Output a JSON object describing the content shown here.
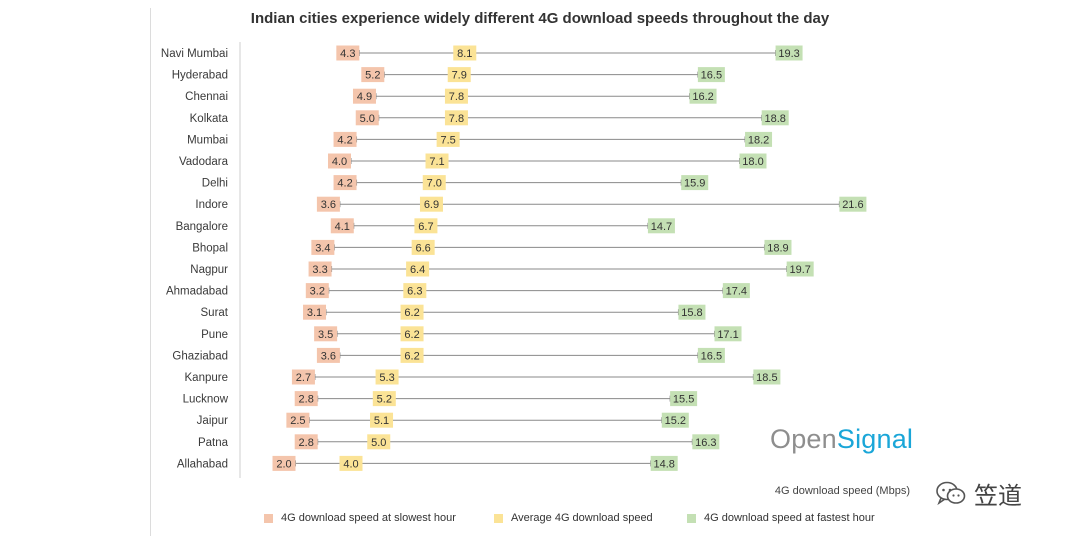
{
  "colors": {
    "slowest": "#f4c5ac",
    "average": "#fbe396",
    "fastest": "#c4e0b4",
    "line": "#8a8a8a"
  },
  "chart_data": {
    "type": "range-dot",
    "title": "Indian cities experience widely different 4G download speeds throughout the day",
    "xlabel": "4G download speed (Mbps)",
    "xlim": [
      0,
      24
    ],
    "categories": [
      "Navi Mumbai",
      "Hyderabad",
      "Chennai",
      "Kolkata",
      "Mumbai",
      "Vadodara",
      "Delhi",
      "Indore",
      "Bangalore",
      "Bhopal",
      "Nagpur",
      "Ahmadabad",
      "Surat",
      "Pune",
      "Ghaziabad",
      "Kanpure",
      "Lucknow",
      "Jaipur",
      "Patna",
      "Allahabad"
    ],
    "series": [
      {
        "name": "4G download speed at slowest hour",
        "values": [
          4.3,
          5.2,
          4.9,
          5.0,
          4.2,
          4.0,
          4.2,
          3.6,
          4.1,
          3.4,
          3.3,
          3.2,
          3.1,
          3.5,
          3.6,
          2.7,
          2.8,
          2.5,
          2.8,
          2.0
        ],
        "labels": [
          "4.3",
          "5.2",
          "4.9",
          "5.0",
          "4.2",
          "4.0",
          "4.2",
          "3.6",
          "4.1",
          "3.4",
          "3.3",
          "3.2",
          "3.1",
          "3.5",
          "3.6",
          "2.7",
          "2.8",
          "2.5",
          "2.8",
          "2.0"
        ]
      },
      {
        "name": "Average 4G download speed",
        "values": [
          8.1,
          7.9,
          7.8,
          7.8,
          7.5,
          7.1,
          7.0,
          6.9,
          6.7,
          6.6,
          6.4,
          6.3,
          6.2,
          6.2,
          6.2,
          5.3,
          5.2,
          5.1,
          5.0,
          4.0
        ],
        "labels": [
          "8.1",
          "7.9",
          "7.8",
          "7.8",
          "7.5",
          "7.1",
          "7.0",
          "6.9",
          "6.7",
          "6.6",
          "6.4",
          "6.3",
          "6.2",
          "6.2",
          "6.2",
          "5.3",
          "5.2",
          "5.1",
          "5.0",
          "4.0"
        ]
      },
      {
        "name": "4G download speed at fastest hour",
        "values": [
          19.3,
          16.5,
          16.2,
          18.8,
          18.2,
          18.0,
          15.9,
          21.6,
          14.7,
          18.9,
          19.7,
          17.4,
          15.8,
          17.1,
          16.5,
          18.5,
          15.5,
          15.2,
          16.3,
          14.8
        ],
        "labels": [
          "19.3",
          "16.5",
          "16.2",
          "18.8",
          "18.2",
          "18.0",
          "15.9",
          "21.6",
          "14.7",
          "18.9",
          "19.7",
          "17.4",
          "15.8",
          "17.1",
          "16.5",
          "18.5",
          "15.5",
          "15.2",
          "16.3",
          "14.8"
        ]
      }
    ],
    "legend_position": "bottom"
  },
  "brand": {
    "logo_open": "Open",
    "logo_signal": "Signal",
    "watermark": "笠道"
  }
}
